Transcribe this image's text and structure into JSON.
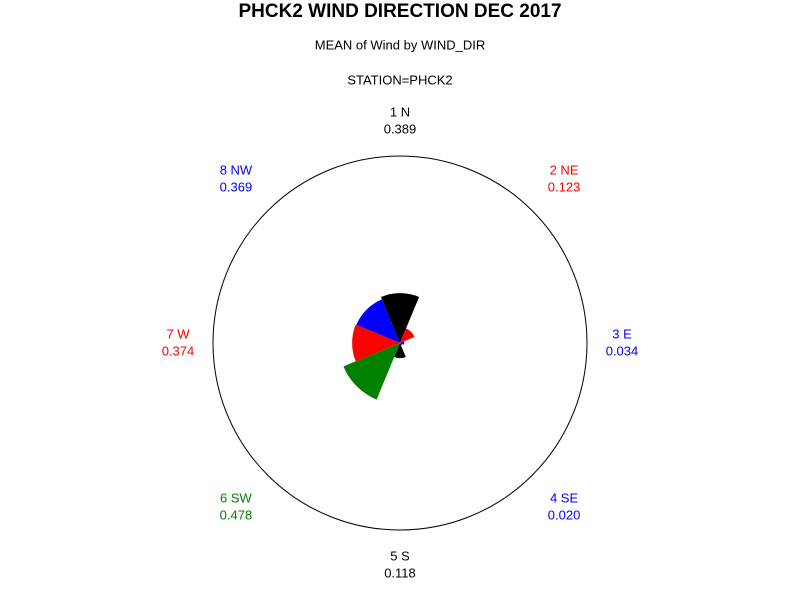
{
  "chart_data": {
    "type": "star",
    "title": "PHCK2 WIND DIRECTION DEC 2017",
    "subtitle": "MEAN of Wind by WIND_DIR",
    "annotation": "STATION=PHCK2",
    "categories": [
      "1 N",
      "2 NE",
      "3 E",
      "4 SE",
      "5 S",
      "6 SW",
      "7 W",
      "8 NW"
    ],
    "values": [
      0.389,
      0.123,
      0.034,
      0.02,
      0.118,
      0.478,
      0.374,
      0.369
    ],
    "value_labels": [
      "0.389",
      "0.123",
      "0.034",
      "0.020",
      "0.118",
      "0.478",
      "0.374",
      "0.369"
    ],
    "colors": [
      "#000000",
      "#ff0000",
      "#0000ff",
      "#0000ff",
      "#000000",
      "#008000",
      "#ff0000",
      "#0000ff"
    ],
    "rlim": [
      0,
      1.46
    ]
  }
}
